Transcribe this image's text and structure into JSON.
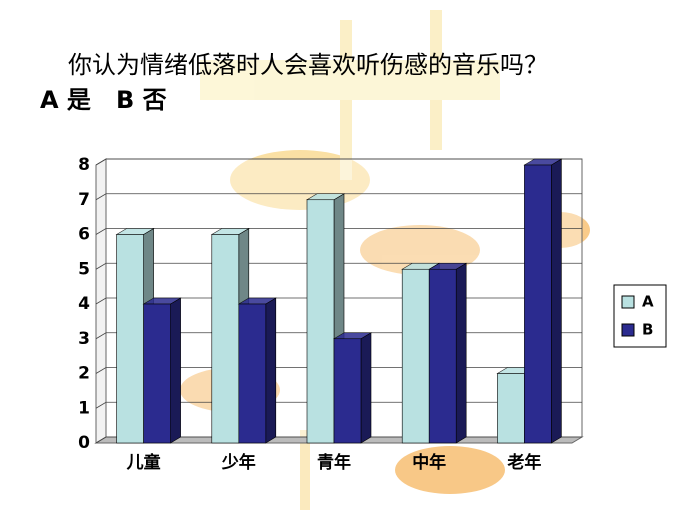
{
  "chart_data": {
    "type": "bar3d",
    "title": "你认为情绪低落时人会喜欢听伤感的音乐吗？",
    "subtitle": "A 是   B 否",
    "categories": [
      "儿童",
      "少年",
      "青年",
      "中年",
      "老年"
    ],
    "series": [
      {
        "name": "A",
        "color": "#b9e1e1",
        "values": [
          6,
          6,
          7,
          5,
          2
        ]
      },
      {
        "name": "B",
        "color": "#2b2b8f",
        "values": [
          4,
          4,
          3,
          5,
          8
        ]
      }
    ],
    "ylim": [
      0,
      8
    ],
    "yticks": [
      0,
      1,
      2,
      3,
      4,
      5,
      6,
      7,
      8
    ],
    "grid": true,
    "legend": "right"
  }
}
